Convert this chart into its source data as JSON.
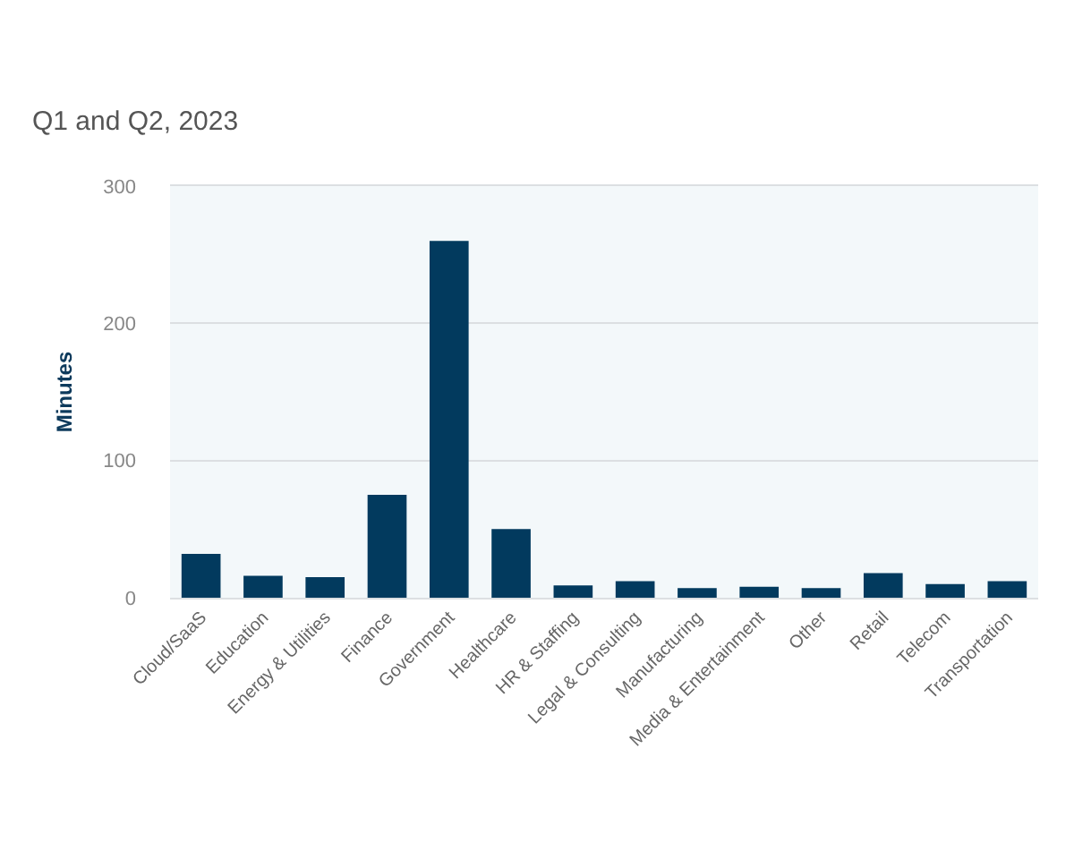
{
  "chart_data": {
    "type": "bar",
    "title": "Q1 and Q2, 2023",
    "ylabel": "Minutes",
    "categories": [
      "Cloud/SaaS",
      "Education",
      "Energy & Utilities",
      "Finance",
      "Government",
      "Healthcare",
      "HR & Staffing",
      "Legal & Consulting",
      "Manufacturing",
      "Media & Entertainment",
      "Other",
      "Retail",
      "Telecom",
      "Transportation"
    ],
    "values": [
      32,
      16,
      15,
      75,
      260,
      50,
      9,
      12,
      7,
      8,
      7,
      18,
      10,
      12
    ],
    "color": "#023a5e",
    "ylim": [
      0,
      300
    ],
    "yticks": [
      0,
      100,
      200,
      300
    ],
    "grid": "y"
  }
}
